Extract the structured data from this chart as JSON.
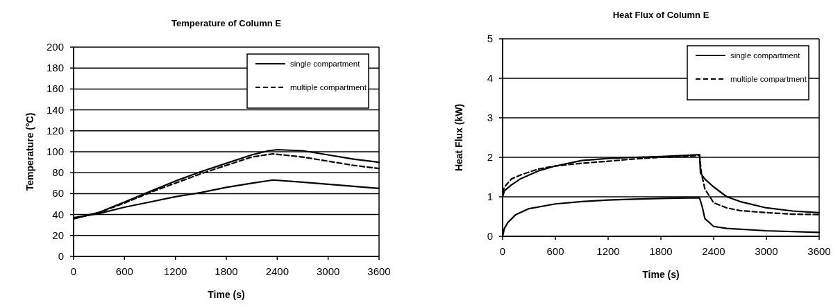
{
  "chart_data": [
    {
      "type": "line",
      "title": "Temperature of Column E",
      "xlabel": "Time (s)",
      "ylabel": "Temperature (°C)",
      "xlim": [
        0,
        3600
      ],
      "xticks": [
        0,
        600,
        1200,
        1800,
        2400,
        3000,
        3600
      ],
      "ylim": [
        0,
        200
      ],
      "yticks": [
        0,
        20,
        40,
        60,
        80,
        100,
        120,
        140,
        160,
        180,
        200
      ],
      "grid": "y",
      "legend": "top right",
      "marker": "none",
      "series": [
        {
          "name": "single compartment",
          "color": "#000000",
          "line_style": "solid",
          "x": [
            0,
            300,
            600,
            900,
            1200,
            1500,
            1800,
            2100,
            2300,
            2400,
            2700,
            3000,
            3300,
            3600
          ],
          "values": [
            36,
            42,
            52,
            62,
            72,
            81,
            89,
            97,
            101,
            102,
            101,
            97,
            93,
            90
          ]
        },
        {
          "name": "multiple compartment",
          "color": "#000000",
          "line_style": "dashed",
          "x": [
            0,
            300,
            600,
            900,
            1200,
            1500,
            1800,
            2100,
            2350,
            2700,
            3000,
            3300,
            3600
          ],
          "values": [
            36,
            42,
            51,
            61,
            70,
            79,
            87,
            95,
            98,
            95,
            91,
            87,
            84
          ]
        },
        {
          "color": "#000000",
          "line_style": "solid",
          "x": [
            0,
            300,
            600,
            900,
            1200,
            1500,
            1800,
            2100,
            2350,
            2700,
            3000,
            3300,
            3600
          ],
          "values": [
            37,
            41,
            47,
            52,
            57,
            61,
            66,
            70,
            73,
            71,
            69,
            67,
            65
          ]
        }
      ]
    },
    {
      "type": "line",
      "title": "Heat Flux of Column E",
      "xlabel": "Time (s)",
      "ylabel": "Heat Flux (kW)",
      "xlim": [
        0,
        3600
      ],
      "xticks": [
        0,
        600,
        1200,
        1800,
        2400,
        3000,
        3600
      ],
      "ylim": [
        0,
        5
      ],
      "yticks": [
        0,
        1,
        2,
        3,
        4,
        5
      ],
      "grid": "y",
      "legend": "top right",
      "marker": "none",
      "series": [
        {
          "name": "single compartment",
          "color": "#000000",
          "line_style": "solid",
          "x": [
            0,
            20,
            100,
            200,
            400,
            600,
            900,
            1200,
            1500,
            1800,
            2100,
            2240,
            2250,
            2300,
            2400,
            2550,
            2700,
            3000,
            3300,
            3600
          ],
          "values": [
            1.0,
            1.15,
            1.3,
            1.45,
            1.65,
            1.78,
            1.92,
            1.97,
            2.0,
            2.02,
            2.05,
            2.07,
            1.6,
            1.45,
            1.25,
            1.0,
            0.88,
            0.72,
            0.64,
            0.6
          ]
        },
        {
          "name": "multiple compartment",
          "color": "#000000",
          "line_style": "dashed",
          "x": [
            0,
            20,
            100,
            200,
            400,
            600,
            900,
            1200,
            1500,
            1800,
            2100,
            2240,
            2260,
            2300,
            2400,
            2550,
            2700,
            3000,
            3300,
            3600
          ],
          "values": [
            1.1,
            1.25,
            1.45,
            1.55,
            1.7,
            1.78,
            1.85,
            1.9,
            1.96,
            2.0,
            2.03,
            2.05,
            1.6,
            1.2,
            0.85,
            0.72,
            0.65,
            0.6,
            0.56,
            0.55
          ]
        },
        {
          "color": "#000000",
          "line_style": "solid",
          "x": [
            0,
            20,
            60,
            150,
            300,
            600,
            900,
            1200,
            1500,
            1800,
            2100,
            2240,
            2270,
            2300,
            2400,
            2550,
            3000,
            3600
          ],
          "values": [
            0,
            0.2,
            0.35,
            0.55,
            0.7,
            0.82,
            0.88,
            0.92,
            0.94,
            0.96,
            0.97,
            0.97,
            0.75,
            0.45,
            0.25,
            0.2,
            0.14,
            0.1
          ]
        }
      ]
    }
  ]
}
